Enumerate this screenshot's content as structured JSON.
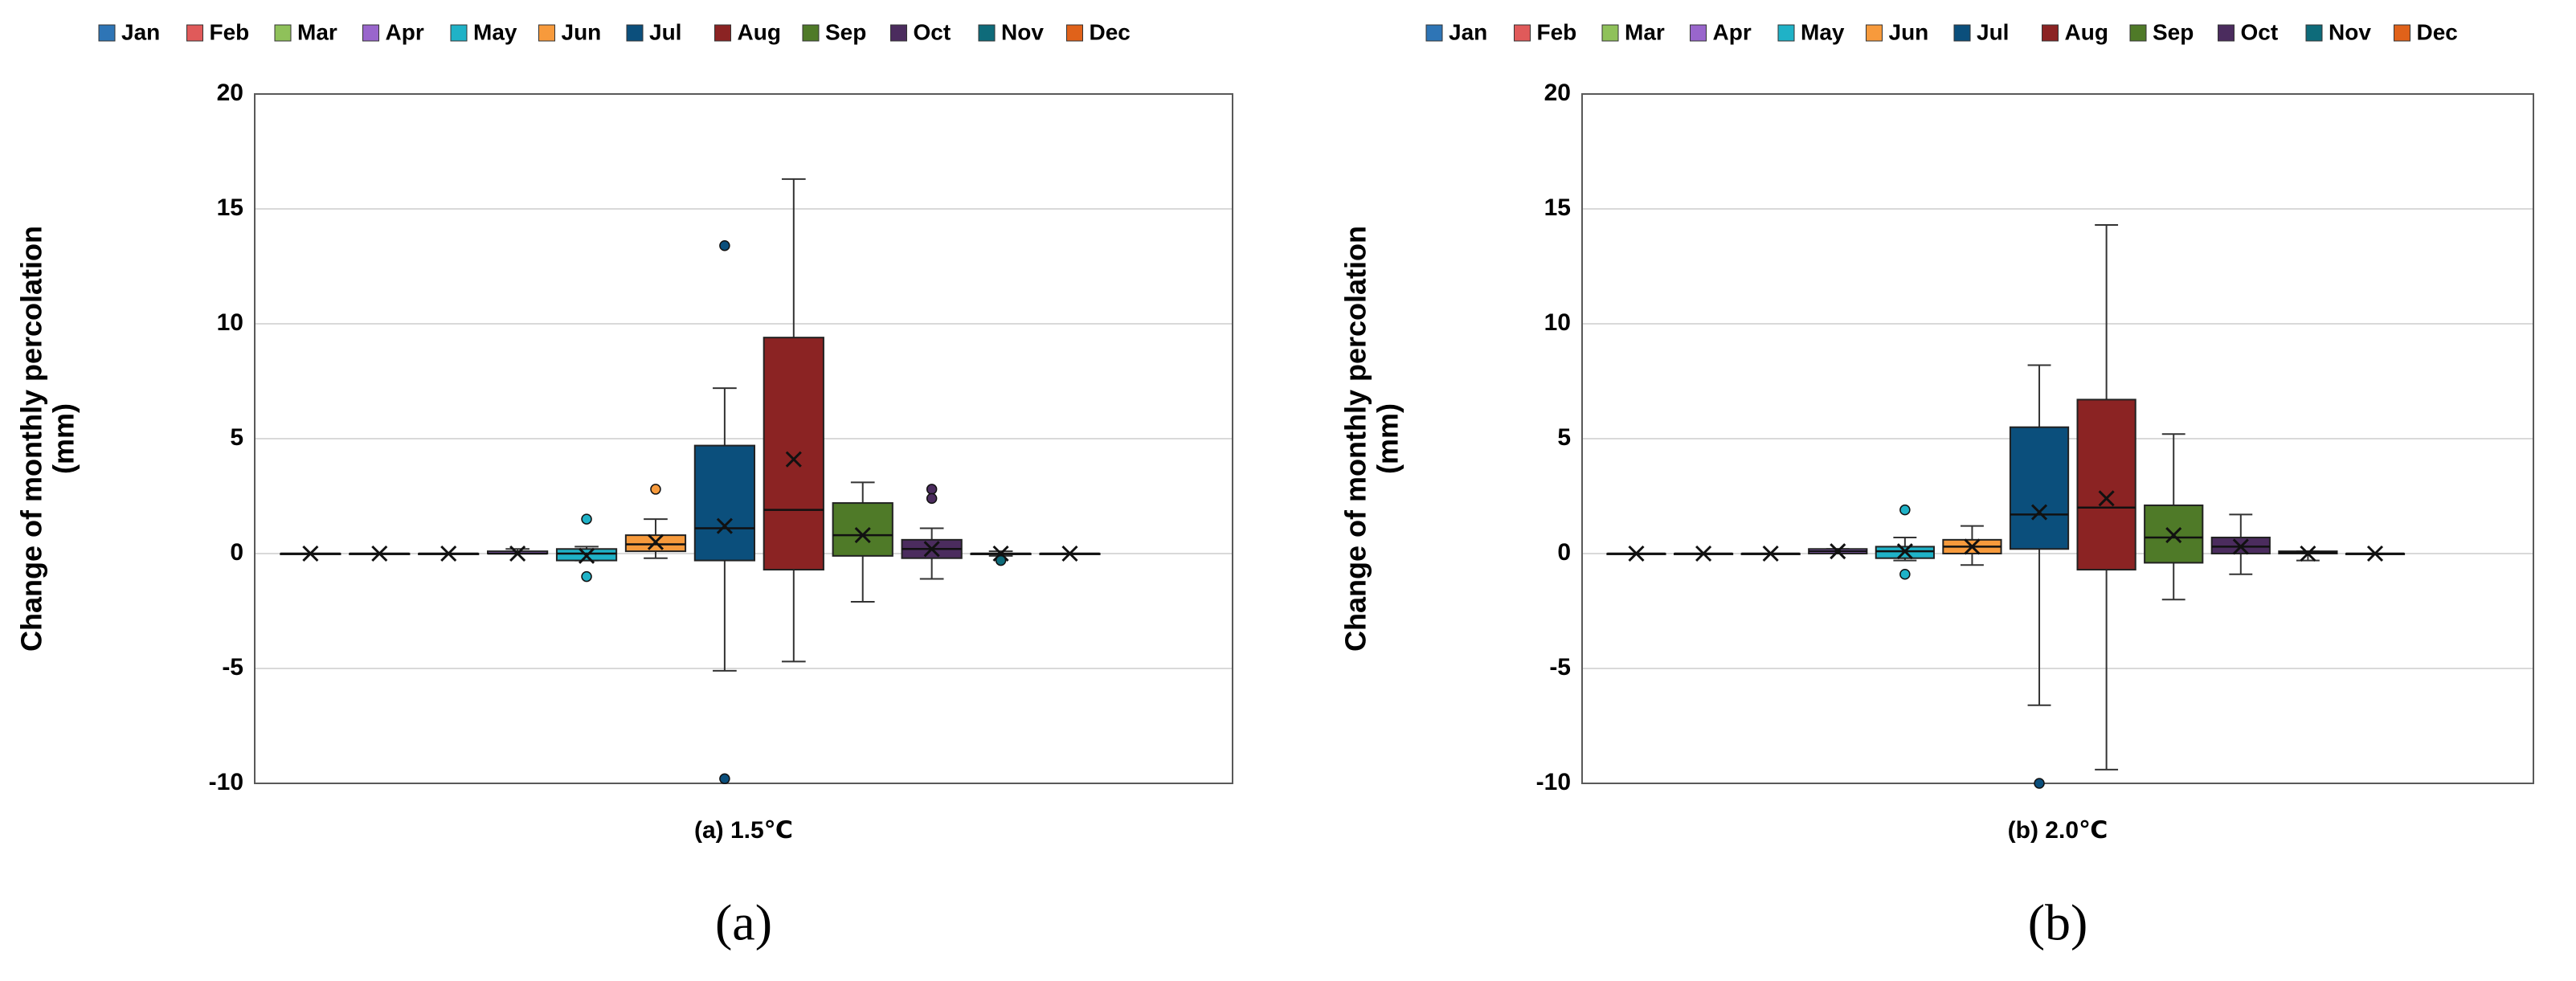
{
  "chart_data": [
    {
      "type": "box",
      "ylabel": [
        "Change of monthly percolation",
        "(mm)"
      ],
      "xlabel": "(a) 1.5℃",
      "panel": "(a)",
      "ylim": [
        -10,
        20
      ],
      "yticks": [
        -10,
        -5,
        0,
        5,
        10,
        15,
        20
      ],
      "grid": true,
      "legend": "top",
      "series": [
        {
          "name": "Jan",
          "color": "#2e75b6",
          "min": 0,
          "q1": 0,
          "median": 0,
          "q3": 0,
          "max": 0,
          "mean": 0,
          "outliers": []
        },
        {
          "name": "Feb",
          "color": "#e05a5a",
          "min": 0,
          "q1": 0,
          "median": 0,
          "q3": 0,
          "max": 0,
          "mean": 0,
          "outliers": []
        },
        {
          "name": "Mar",
          "color": "#8fc15a",
          "min": 0,
          "q1": 0,
          "median": 0,
          "q3": 0,
          "max": 0,
          "mean": 0,
          "outliers": []
        },
        {
          "name": "Apr",
          "color": "#9966cc",
          "min": 0,
          "q1": 0,
          "median": 0,
          "q3": 0.1,
          "max": 0.2,
          "mean": 0,
          "outliers": []
        },
        {
          "name": "May",
          "color": "#1fb2c7",
          "min": -0.3,
          "q1": -0.3,
          "median": 0,
          "q3": 0.2,
          "max": 0.3,
          "mean": -0.1,
          "outliers": [
            1.5,
            -1.0
          ]
        },
        {
          "name": "Jun",
          "color": "#f79a3c",
          "min": -0.2,
          "q1": 0.1,
          "median": 0.4,
          "q3": 0.8,
          "max": 1.5,
          "mean": 0.5,
          "outliers": [
            2.8
          ]
        },
        {
          "name": "Jul",
          "color": "#0b4f7c",
          "min": -5.1,
          "q1": -0.3,
          "median": 1.1,
          "q3": 4.7,
          "max": 7.2,
          "mean": 1.2,
          "outliers": [
            13.4,
            -9.8
          ]
        },
        {
          "name": "Aug",
          "color": "#8b2323",
          "min": -4.7,
          "q1": -0.7,
          "median": 1.9,
          "q3": 9.4,
          "max": 16.3,
          "mean": 4.1,
          "outliers": []
        },
        {
          "name": "Sep",
          "color": "#4f7a28",
          "min": -2.1,
          "q1": -0.1,
          "median": 0.8,
          "q3": 2.2,
          "max": 3.1,
          "mean": 0.8,
          "outliers": []
        },
        {
          "name": "Oct",
          "color": "#4b2c5e",
          "min": -1.1,
          "q1": -0.2,
          "median": 0.2,
          "q3": 0.6,
          "max": 1.1,
          "mean": 0.2,
          "outliers": [
            2.8,
            2.4
          ]
        },
        {
          "name": "Nov",
          "color": "#0e6b7a",
          "min": -0.1,
          "q1": 0,
          "median": 0,
          "q3": 0,
          "max": 0.1,
          "mean": 0,
          "outliers": [
            -0.3
          ]
        },
        {
          "name": "Dec",
          "color": "#e0621a",
          "min": 0,
          "q1": 0,
          "median": 0,
          "q3": 0,
          "max": 0,
          "mean": 0,
          "outliers": []
        }
      ]
    },
    {
      "type": "box",
      "ylabel": [
        "Change of monthly percolation",
        "(mm)"
      ],
      "xlabel": "(b) 2.0℃",
      "panel": "(b)",
      "ylim": [
        -10,
        20
      ],
      "yticks": [
        -10,
        -5,
        0,
        5,
        10,
        15,
        20
      ],
      "grid": true,
      "legend": "top",
      "series": [
        {
          "name": "Jan",
          "color": "#2e75b6",
          "min": 0,
          "q1": 0,
          "median": 0,
          "q3": 0,
          "max": 0,
          "mean": 0,
          "outliers": []
        },
        {
          "name": "Feb",
          "color": "#e05a5a",
          "min": 0,
          "q1": 0,
          "median": 0,
          "q3": 0,
          "max": 0,
          "mean": 0,
          "outliers": []
        },
        {
          "name": "Mar",
          "color": "#8fc15a",
          "min": 0,
          "q1": 0,
          "median": 0,
          "q3": 0,
          "max": 0,
          "mean": 0,
          "outliers": []
        },
        {
          "name": "Apr",
          "color": "#9966cc",
          "min": 0,
          "q1": 0,
          "median": 0.1,
          "q3": 0.2,
          "max": 0.2,
          "mean": 0.1,
          "outliers": []
        },
        {
          "name": "May",
          "color": "#1fb2c7",
          "min": -0.3,
          "q1": -0.2,
          "median": 0.1,
          "q3": 0.3,
          "max": 0.7,
          "mean": 0.1,
          "outliers": [
            1.9,
            -0.9
          ]
        },
        {
          "name": "Jun",
          "color": "#f79a3c",
          "min": -0.5,
          "q1": 0,
          "median": 0.3,
          "q3": 0.6,
          "max": 1.2,
          "mean": 0.3,
          "outliers": []
        },
        {
          "name": "Jul",
          "color": "#0b4f7c",
          "min": -6.6,
          "q1": 0.2,
          "median": 1.7,
          "q3": 5.5,
          "max": 8.2,
          "mean": 1.8,
          "outliers": [
            -10
          ]
        },
        {
          "name": "Aug",
          "color": "#8b2323",
          "min": -9.4,
          "q1": -0.7,
          "median": 2.0,
          "q3": 6.7,
          "max": 14.3,
          "mean": 2.4,
          "outliers": []
        },
        {
          "name": "Sep",
          "color": "#4f7a28",
          "min": -2.0,
          "q1": -0.4,
          "median": 0.7,
          "q3": 2.1,
          "max": 5.2,
          "mean": 0.8,
          "outliers": []
        },
        {
          "name": "Oct",
          "color": "#4b2c5e",
          "min": -0.9,
          "q1": 0,
          "median": 0.3,
          "q3": 0.7,
          "max": 1.7,
          "mean": 0.3,
          "outliers": []
        },
        {
          "name": "Nov",
          "color": "#0e6b7a",
          "min": -0.3,
          "q1": 0,
          "median": 0.05,
          "q3": 0.1,
          "max": 0.1,
          "mean": 0,
          "outliers": []
        },
        {
          "name": "Dec",
          "color": "#e0621a",
          "min": 0,
          "q1": 0,
          "median": 0,
          "q3": 0,
          "max": 0,
          "mean": 0,
          "outliers": []
        }
      ]
    }
  ]
}
